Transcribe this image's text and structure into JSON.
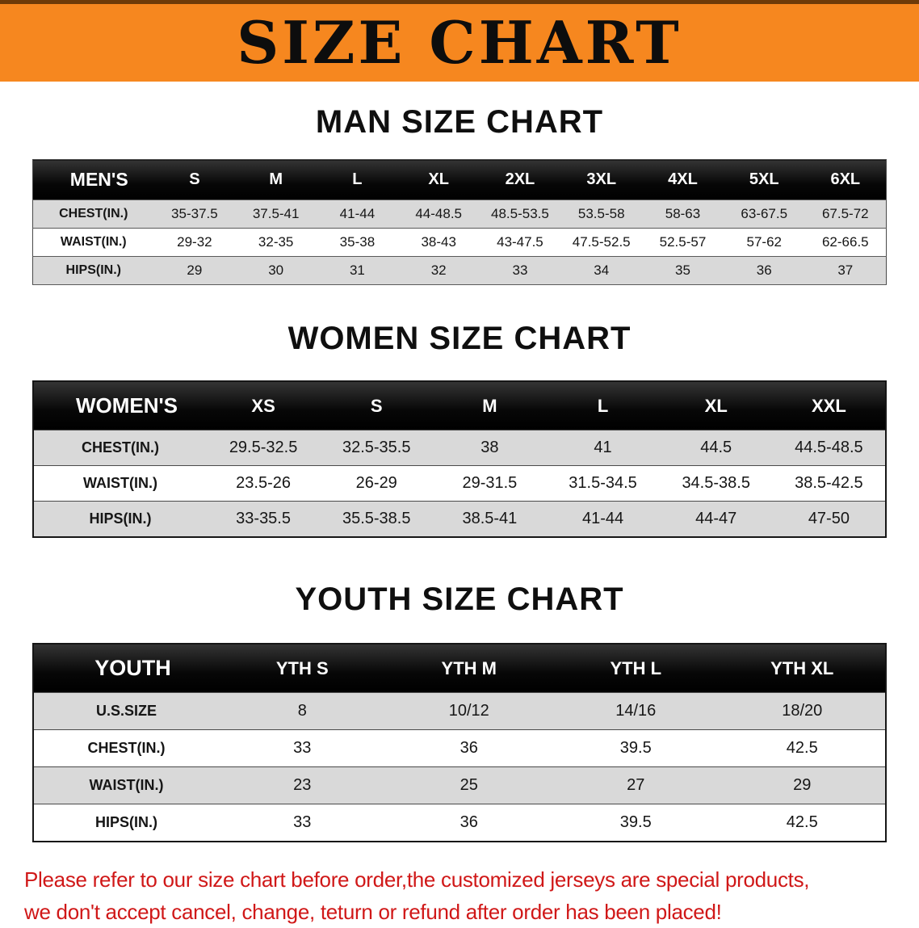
{
  "banner": {
    "title": "SIZE CHART"
  },
  "sections": [
    {
      "heading": "MAN SIZE CHART",
      "table": {
        "label": "MEN'S",
        "sizes": [
          "S",
          "M",
          "L",
          "XL",
          "2XL",
          "3XL",
          "4XL",
          "5XL",
          "6XL"
        ],
        "rows": [
          {
            "label": "CHEST(IN.)",
            "values": [
              "35-37.5",
              "37.5-41",
              "41-44",
              "44-48.5",
              "48.5-53.5",
              "53.5-58",
              "58-63",
              "63-67.5",
              "67.5-72"
            ]
          },
          {
            "label": "WAIST(IN.)",
            "values": [
              "29-32",
              "32-35",
              "35-38",
              "38-43",
              "43-47.5",
              "47.5-52.5",
              "52.5-57",
              "57-62",
              "62-66.5"
            ]
          },
          {
            "label": "HIPS(IN.)",
            "values": [
              "29",
              "30",
              "31",
              "32",
              "33",
              "34",
              "35",
              "36",
              "37"
            ]
          }
        ]
      }
    },
    {
      "heading": "WOMEN SIZE CHART",
      "table": {
        "label": "WOMEN'S",
        "sizes": [
          "XS",
          "S",
          "M",
          "L",
          "XL",
          "XXL"
        ],
        "rows": [
          {
            "label": "CHEST(IN.)",
            "values": [
              "29.5-32.5",
              "32.5-35.5",
              "38",
              "41",
              "44.5",
              "44.5-48.5"
            ]
          },
          {
            "label": "WAIST(IN.)",
            "values": [
              "23.5-26",
              "26-29",
              "29-31.5",
              "31.5-34.5",
              "34.5-38.5",
              "38.5-42.5"
            ]
          },
          {
            "label": "HIPS(IN.)",
            "values": [
              "33-35.5",
              "35.5-38.5",
              "38.5-41",
              "41-44",
              "44-47",
              "47-50"
            ]
          }
        ]
      }
    },
    {
      "heading": "YOUTH SIZE CHART",
      "table": {
        "label": "YOUTH",
        "sizes": [
          "YTH S",
          "YTH M",
          "YTH L",
          "YTH XL"
        ],
        "rows": [
          {
            "label": "U.S.SIZE",
            "values": [
              "8",
              "10/12",
              "14/16",
              "18/20"
            ]
          },
          {
            "label": "CHEST(IN.)",
            "values": [
              "33",
              "36",
              "39.5",
              "42.5"
            ]
          },
          {
            "label": "WAIST(IN.)",
            "values": [
              "23",
              "25",
              "27",
              "29"
            ]
          },
          {
            "label": "HIPS(IN.)",
            "values": [
              "33",
              "36",
              "39.5",
              "42.5"
            ]
          }
        ]
      }
    }
  ],
  "footer": {
    "line1": "Please refer to our size chart before order,the customized jerseys are special products,",
    "line2": "we don't accept cancel, change, teturn or refund after order has been placed!"
  },
  "colors": {
    "banner_bg": "#f6871f",
    "banner_top_line": "#6e3a08",
    "header_bg": "#0d0d0d",
    "row_shade": "#d9d9d9",
    "notice_text": "#d01818"
  }
}
